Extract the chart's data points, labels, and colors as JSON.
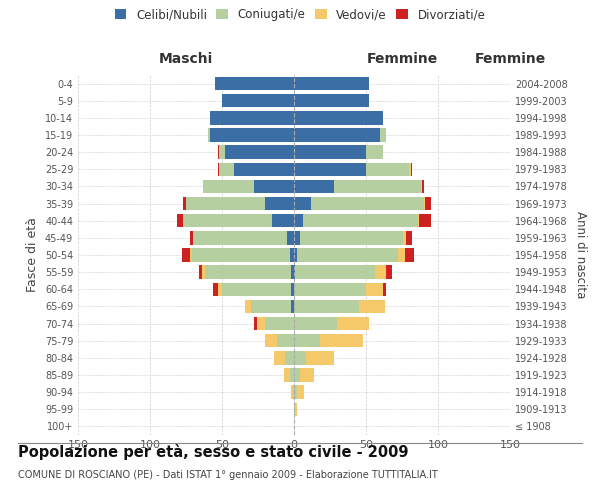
{
  "age_groups": [
    "100+",
    "95-99",
    "90-94",
    "85-89",
    "80-84",
    "75-79",
    "70-74",
    "65-69",
    "60-64",
    "55-59",
    "50-54",
    "45-49",
    "40-44",
    "35-39",
    "30-34",
    "25-29",
    "20-24",
    "15-19",
    "10-14",
    "5-9",
    "0-4"
  ],
  "birth_years": [
    "≤ 1908",
    "1909-1913",
    "1914-1918",
    "1919-1923",
    "1924-1928",
    "1929-1933",
    "1934-1938",
    "1939-1943",
    "1944-1948",
    "1949-1953",
    "1954-1958",
    "1959-1963",
    "1964-1968",
    "1969-1973",
    "1974-1978",
    "1979-1983",
    "1984-1988",
    "1989-1993",
    "1994-1998",
    "1999-2003",
    "2004-2008"
  ],
  "colors": {
    "celibe": "#3b6ea5",
    "coniugato": "#b5cfa0",
    "vedovo": "#f5c96a",
    "divorziato": "#cc2222"
  },
  "maschi_celibe": [
    0,
    0,
    0,
    0,
    0,
    0,
    0,
    2,
    2,
    2,
    3,
    5,
    15,
    20,
    28,
    42,
    48,
    58,
    58,
    50,
    55
  ],
  "maschi_coniugato": [
    0,
    0,
    1,
    3,
    6,
    12,
    20,
    28,
    48,
    60,
    68,
    65,
    62,
    55,
    35,
    10,
    4,
    2,
    0,
    0,
    0
  ],
  "maschi_vedovo": [
    0,
    0,
    1,
    4,
    8,
    8,
    6,
    4,
    3,
    2,
    1,
    0,
    0,
    0,
    0,
    0,
    0,
    0,
    0,
    0,
    0
  ],
  "maschi_divorziato": [
    0,
    0,
    0,
    0,
    0,
    0,
    2,
    0,
    3,
    2,
    6,
    2,
    4,
    2,
    0,
    1,
    1,
    0,
    0,
    0,
    0
  ],
  "femmine_nubile": [
    0,
    0,
    0,
    0,
    0,
    0,
    0,
    0,
    0,
    1,
    2,
    4,
    6,
    12,
    28,
    50,
    50,
    60,
    62,
    52,
    52
  ],
  "femmine_coniugata": [
    0,
    1,
    2,
    4,
    8,
    18,
    30,
    45,
    50,
    55,
    70,
    72,
    80,
    78,
    60,
    30,
    12,
    4,
    0,
    0,
    0
  ],
  "femmine_vedova": [
    0,
    1,
    5,
    10,
    20,
    30,
    22,
    18,
    12,
    8,
    5,
    2,
    1,
    1,
    1,
    1,
    0,
    0,
    0,
    0,
    0
  ],
  "femmine_divorziata": [
    0,
    0,
    0,
    0,
    0,
    0,
    0,
    0,
    2,
    4,
    6,
    4,
    8,
    4,
    1,
    1,
    0,
    0,
    0,
    0,
    0
  ],
  "xlim": 150,
  "title": "Popolazione per età, sesso e stato civile - 2009",
  "subtitle": "COMUNE DI ROSCIANO (PE) - Dati ISTAT 1° gennaio 2009 - Elaborazione TUTTITALIA.IT",
  "ylabel_left": "Fasce di età",
  "ylabel_right": "Anni di nascita",
  "xlabel_maschi": "Maschi",
  "xlabel_femmine": "Femmine",
  "legend_labels": [
    "Celibi/Nubili",
    "Coniugati/e",
    "Vedovi/e",
    "Divorziati/e"
  ]
}
